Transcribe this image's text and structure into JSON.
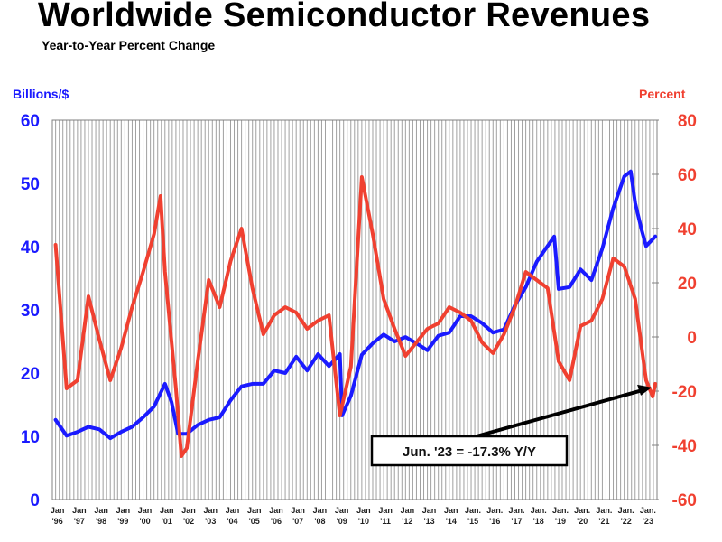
{
  "chart_data": {
    "type": "line",
    "title": "Worldwide Semiconductor Revenues",
    "subtitle": "Year-to-Year Percent Change",
    "ylabel_left": "Billions/$",
    "ylabel_right": "Percent",
    "ylim_left": [
      0,
      60
    ],
    "ylim_right": [
      -60,
      80
    ],
    "yticks_left": [
      0,
      10,
      20,
      30,
      40,
      50,
      60
    ],
    "yticks_right": [
      -60,
      -40,
      -20,
      0,
      20,
      40,
      60,
      80
    ],
    "xlim": [
      1996,
      1996.42
    ],
    "xlim_end": 2023.45,
    "xticks": [
      {
        "x": 1996,
        "l1": "Jan",
        "l2": "'96"
      },
      {
        "x": 1997,
        "l1": "Jan",
        "l2": "'97"
      },
      {
        "x": 1998,
        "l1": "Jan",
        "l2": "'98"
      },
      {
        "x": 1999,
        "l1": "Jan",
        "l2": "'99"
      },
      {
        "x": 2000,
        "l1": "Jan",
        "l2": "'00"
      },
      {
        "x": 2001,
        "l1": "Jan",
        "l2": "'01"
      },
      {
        "x": 2002,
        "l1": "Jan",
        "l2": "'02"
      },
      {
        "x": 2003,
        "l1": "Jan",
        "l2": "'03"
      },
      {
        "x": 2004,
        "l1": "Jan",
        "l2": "'04"
      },
      {
        "x": 2005,
        "l1": "Jan",
        "l2": "'05"
      },
      {
        "x": 2006,
        "l1": "Jan",
        "l2": "'06"
      },
      {
        "x": 2007,
        "l1": "Jan",
        "l2": "'07"
      },
      {
        "x": 2008,
        "l1": "Jan",
        "l2": "'08"
      },
      {
        "x": 2009,
        "l1": "Jan",
        "l2": "'09"
      },
      {
        "x": 2010,
        "l1": "Jan",
        "l2": "'10"
      },
      {
        "x": 2011,
        "l1": "Jan",
        "l2": "'11"
      },
      {
        "x": 2012,
        "l1": "Jan",
        "l2": "'12"
      },
      {
        "x": 2013,
        "l1": "Jan",
        "l2": "'13"
      },
      {
        "x": 2014,
        "l1": "Jan",
        "l2": "'14"
      },
      {
        "x": 2015,
        "l1": "Jan.",
        "l2": "'15"
      },
      {
        "x": 2016,
        "l1": "Jan.",
        "l2": "'16"
      },
      {
        "x": 2017,
        "l1": "Jan.",
        "l2": "'17"
      },
      {
        "x": 2018,
        "l1": "Jan.",
        "l2": "'18"
      },
      {
        "x": 2019,
        "l1": "Jan.",
        "l2": "'19"
      },
      {
        "x": 2020,
        "l1": "Jan.",
        "l2": "'20"
      },
      {
        "x": 2021,
        "l1": "Jan.",
        "l2": "'21"
      },
      {
        "x": 2022,
        "l1": "Jan.",
        "l2": "'22"
      },
      {
        "x": 2023,
        "l1": "Jan.",
        "l2": "'23"
      }
    ],
    "grid": "vertical",
    "series": [
      {
        "axis": "left",
        "color": "#1a1aff",
        "x": [
          1996,
          1996.5,
          1997,
          1997.5,
          1998,
          1998.5,
          1999,
          1999.5,
          2000,
          2000.5,
          2001,
          2001.3,
          2001.6,
          2002,
          2002.5,
          2003,
          2003.5,
          2004,
          2004.5,
          2005,
          2005.5,
          2006,
          2006.5,
          2007,
          2007.5,
          2008,
          2008.5,
          2009,
          2009.1,
          2009.5,
          2010,
          2010.5,
          2011,
          2011.5,
          2012,
          2012.5,
          2013,
          2013.5,
          2014,
          2014.5,
          2015,
          2015.5,
          2016,
          2016.5,
          2017,
          2017.5,
          2018,
          2018.5,
          2018.8,
          2019,
          2019.5,
          2020,
          2020.5,
          2021,
          2021.5,
          2022,
          2022.3,
          2022.5,
          2022.8,
          2023,
          2023.42
        ],
        "y": [
          12.6,
          10.1,
          10.7,
          11.5,
          11.1,
          9.7,
          10.7,
          11.5,
          13,
          14.7,
          18.3,
          15.4,
          10.4,
          10.4,
          11.8,
          12.6,
          13,
          15.7,
          17.9,
          18.3,
          18.3,
          20.4,
          20,
          22.6,
          20.4,
          23,
          21.1,
          23,
          13.3,
          16.4,
          22.9,
          24.7,
          26.1,
          25,
          25.7,
          24.7,
          23.6,
          25.9,
          26.4,
          29,
          29,
          27.9,
          26.4,
          26.9,
          30.7,
          33.6,
          37.6,
          40.1,
          41.6,
          33.3,
          33.6,
          36.4,
          34.7,
          39.7,
          46.1,
          51.1,
          51.9,
          46.9,
          42.6,
          40.1,
          41.6
        ]
      },
      {
        "axis": "right",
        "color": "#f04030",
        "x": [
          1996,
          1996.5,
          1997,
          1997.5,
          1998,
          1998.5,
          1999,
          1999.5,
          2000,
          2000.5,
          2000.8,
          2001,
          2001.5,
          2001.75,
          2002,
          2002.5,
          2003,
          2003.5,
          2004,
          2004.5,
          2005,
          2005.5,
          2006,
          2006.5,
          2007,
          2007.5,
          2008,
          2008.5,
          2009,
          2009.5,
          2010,
          2010.5,
          2011,
          2011.5,
          2012,
          2012.5,
          2013,
          2013.5,
          2014,
          2014.5,
          2015,
          2015.5,
          2016,
          2016.5,
          2017,
          2017.5,
          2018,
          2018.5,
          2019,
          2019.5,
          2020,
          2020.5,
          2021,
          2021.5,
          2022,
          2022.5,
          2022.8,
          2023,
          2023.3,
          2023.42
        ],
        "y": [
          34,
          -19,
          -16,
          15,
          -1,
          -16,
          -4,
          11,
          24,
          38,
          52,
          24,
          -19,
          -44,
          -41,
          -9,
          21,
          11,
          28,
          40,
          18,
          1,
          8,
          11,
          9,
          3,
          6,
          8,
          -29,
          -11,
          59,
          38,
          14,
          3,
          -7,
          -2,
          3,
          5,
          11,
          9,
          6,
          -2,
          -6,
          1,
          11,
          24,
          21,
          18,
          -9,
          -16,
          4,
          6,
          14,
          29,
          26,
          14,
          -4,
          -16,
          -22,
          -17.3
        ]
      }
    ],
    "annotation": {
      "text": "Jun. '23 = -17.3% Y/Y",
      "x": 2023.42,
      "y": -17.3
    }
  }
}
